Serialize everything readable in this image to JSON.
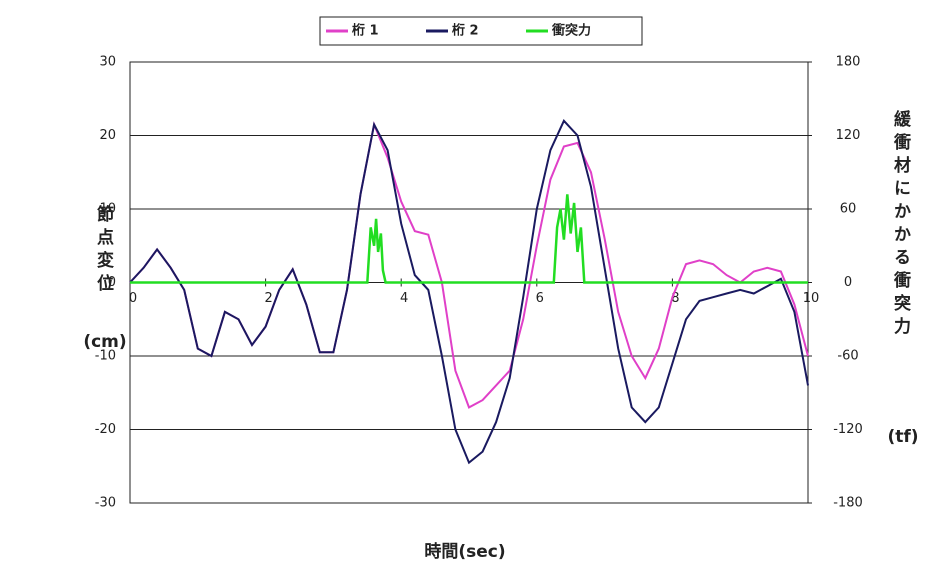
{
  "chart_data": {
    "type": "line",
    "x_label": "時間(sec)",
    "y_label": "節点変位",
    "y_unit": "(cm)",
    "y2_label": "緩衝材にかかる衝突力",
    "y2_unit": "(tf)",
    "x": [
      0,
      0.2,
      0.4,
      0.6,
      0.8,
      1.0,
      1.2,
      1.4,
      1.6,
      1.8,
      2.0,
      2.2,
      2.4,
      2.6,
      2.8,
      3.0,
      3.2,
      3.4,
      3.6,
      3.8,
      4.0,
      4.2,
      4.4,
      4.6,
      4.8,
      5.0,
      5.2,
      5.4,
      5.6,
      5.8,
      6.0,
      6.2,
      6.4,
      6.6,
      6.8,
      7.0,
      7.2,
      7.4,
      7.6,
      7.8,
      8.0,
      8.2,
      8.4,
      8.6,
      8.8,
      9.0,
      9.2,
      9.4,
      9.6,
      9.8,
      10
    ],
    "series": [
      {
        "name": "桁 1",
        "color": "#e040c8",
        "values": [
          0,
          2,
          4.5,
          2,
          -1,
          -9,
          -10,
          -4,
          -5,
          -8.5,
          -6,
          -1,
          1.8,
          -3,
          -9.5,
          -9.5,
          -1,
          12,
          21.5,
          17,
          11,
          7,
          6.5,
          0,
          -12,
          -17,
          -16,
          -14,
          -12,
          -5,
          5,
          14,
          18.5,
          19,
          15,
          6,
          -4,
          -10,
          -13,
          -9,
          -2,
          2.5,
          3,
          2.5,
          1,
          0,
          1.5,
          2,
          1.5,
          -3,
          -10
        ]
      },
      {
        "name": "桁 2",
        "color": "#1a1a60",
        "values": [
          0,
          2,
          4.5,
          2,
          -1,
          -9,
          -10,
          -4,
          -5,
          -8.5,
          -6,
          -1,
          1.8,
          -3,
          -9.5,
          -9.5,
          -1,
          12,
          21.5,
          18,
          8,
          1,
          -1,
          -10,
          -20,
          -24.5,
          -23,
          -19,
          -13,
          -2,
          10,
          18,
          22,
          20,
          13,
          2,
          -9,
          -17,
          -19,
          -17,
          -11,
          -5,
          -2.5,
          -2,
          -1.5,
          -1,
          -1.5,
          -0.5,
          0.5,
          -4,
          -14
        ]
      },
      {
        "name": "衝突力",
        "color": "#22dd22",
        "axis": "y2",
        "x": [
          0,
          3.5,
          3.55,
          3.6,
          3.63,
          3.66,
          3.7,
          3.73,
          3.77,
          6.25,
          6.3,
          6.35,
          6.4,
          6.45,
          6.5,
          6.55,
          6.6,
          6.65,
          6.7,
          10
        ],
        "values": [
          0,
          0,
          45,
          30,
          52,
          25,
          40,
          10,
          0,
          0,
          45,
          60,
          35,
          72,
          40,
          65,
          25,
          45,
          0,
          0
        ]
      }
    ],
    "xlim": [
      0,
      10
    ],
    "xticks": [
      0,
      2,
      4,
      6,
      8,
      10
    ],
    "ylim": [
      -30,
      30
    ],
    "yticks": [
      30,
      20,
      10,
      0,
      -10,
      -20,
      -30
    ],
    "y2lim": [
      -180,
      180
    ],
    "y2ticks": [
      180,
      120,
      60,
      0,
      -60,
      -120,
      -180
    ],
    "grid": true
  }
}
